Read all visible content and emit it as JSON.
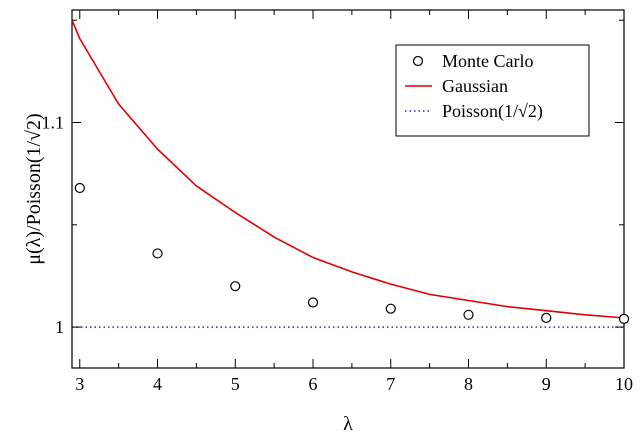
{
  "chart_data": {
    "type": "scatter",
    "xlabel": "λ",
    "ylabel": "μ(λ)/Poisson(1/√2)",
    "xlim": [
      2.9,
      10.0
    ],
    "ylim": [
      0.98,
      1.155
    ],
    "x_ticks": [
      3,
      4,
      5,
      6,
      7,
      8,
      9,
      10
    ],
    "y_ticks": [
      1,
      1.1
    ],
    "x_tick_labels": [
      "3",
      "4",
      "5",
      "6",
      "7",
      "8",
      "9",
      "10"
    ],
    "y_tick_labels": [
      "1",
      "1.1"
    ],
    "grid": false,
    "legend_position": "top-right",
    "series": [
      {
        "name": "Monte Carlo",
        "kind": "markers",
        "marker": "open-circle",
        "color": "#000000",
        "x": [
          3,
          4,
          5,
          6,
          7,
          8,
          9,
          10
        ],
        "y": [
          1.068,
          1.036,
          1.02,
          1.012,
          1.009,
          1.006,
          1.0045,
          1.004
        ]
      },
      {
        "name": "Gaussian",
        "kind": "line",
        "style": "solid",
        "color": "#e00000",
        "x": [
          2.9,
          3,
          3.5,
          4,
          4.5,
          5,
          5.5,
          6,
          6.5,
          7,
          7.5,
          8,
          8.5,
          9,
          9.5,
          10
        ],
        "y": [
          1.15,
          1.141,
          1.109,
          1.087,
          1.069,
          1.056,
          1.044,
          1.034,
          1.027,
          1.021,
          1.016,
          1.013,
          1.01,
          1.008,
          1.006,
          1.0045
        ]
      },
      {
        "name": "Poisson(1/√2)",
        "kind": "line",
        "style": "dotted",
        "color": "#2a2ad8",
        "x": [
          2.9,
          10
        ],
        "y": [
          1.0,
          1.0
        ]
      }
    ]
  }
}
